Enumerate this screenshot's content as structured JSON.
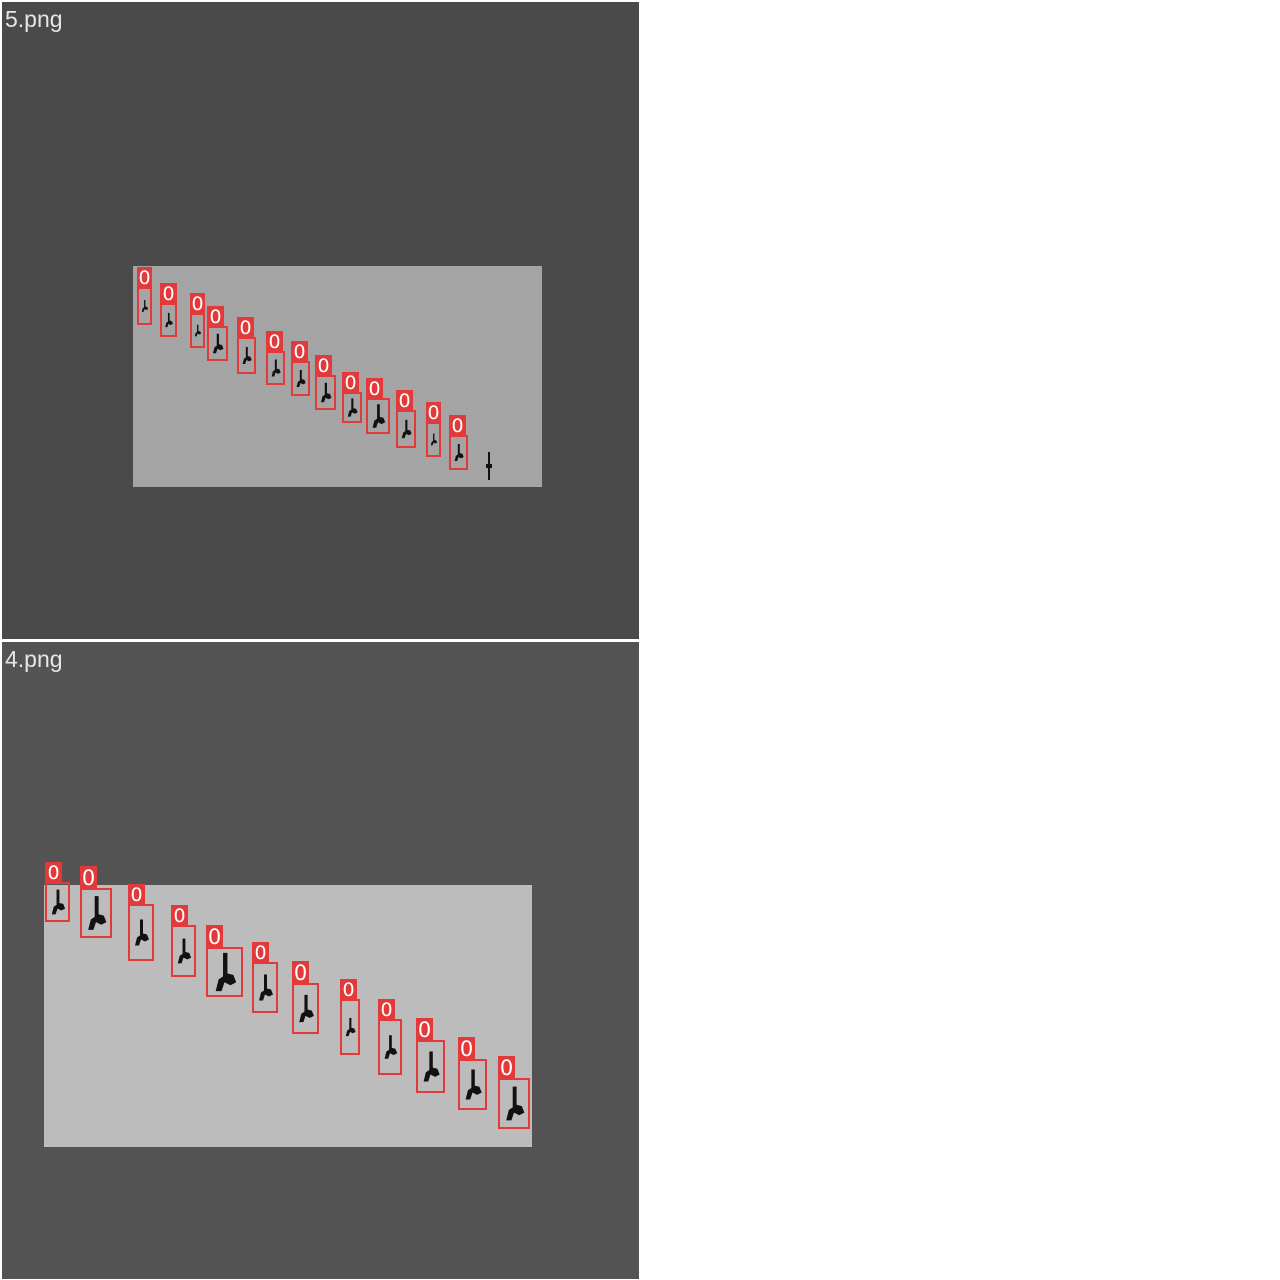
{
  "panels": [
    {
      "filename": "5.png",
      "detections": [
        {
          "class_label": "0"
        },
        {
          "class_label": "0"
        },
        {
          "class_label": "0"
        },
        {
          "class_label": "0"
        },
        {
          "class_label": "0"
        },
        {
          "class_label": "0"
        },
        {
          "class_label": "0"
        },
        {
          "class_label": "0"
        },
        {
          "class_label": "0"
        },
        {
          "class_label": "0"
        },
        {
          "class_label": "0"
        },
        {
          "class_label": "0"
        },
        {
          "class_label": "0"
        }
      ]
    },
    {
      "filename": "4.png",
      "detections": [
        {
          "class_label": "0"
        },
        {
          "class_label": "0"
        },
        {
          "class_label": "0"
        },
        {
          "class_label": "0"
        },
        {
          "class_label": "0"
        },
        {
          "class_label": "0"
        },
        {
          "class_label": "0"
        },
        {
          "class_label": "0"
        },
        {
          "class_label": "0"
        },
        {
          "class_label": "0"
        },
        {
          "class_label": "0"
        },
        {
          "class_label": "0"
        }
      ]
    }
  ],
  "colors": {
    "box": "#e23a3a",
    "label_text": "#ffffff",
    "filename_text": "#e6e6e6",
    "object": "#111111"
  },
  "icons": {
    "detected_object": "handgun-silhouette-icon",
    "label": "class-label-tag"
  }
}
